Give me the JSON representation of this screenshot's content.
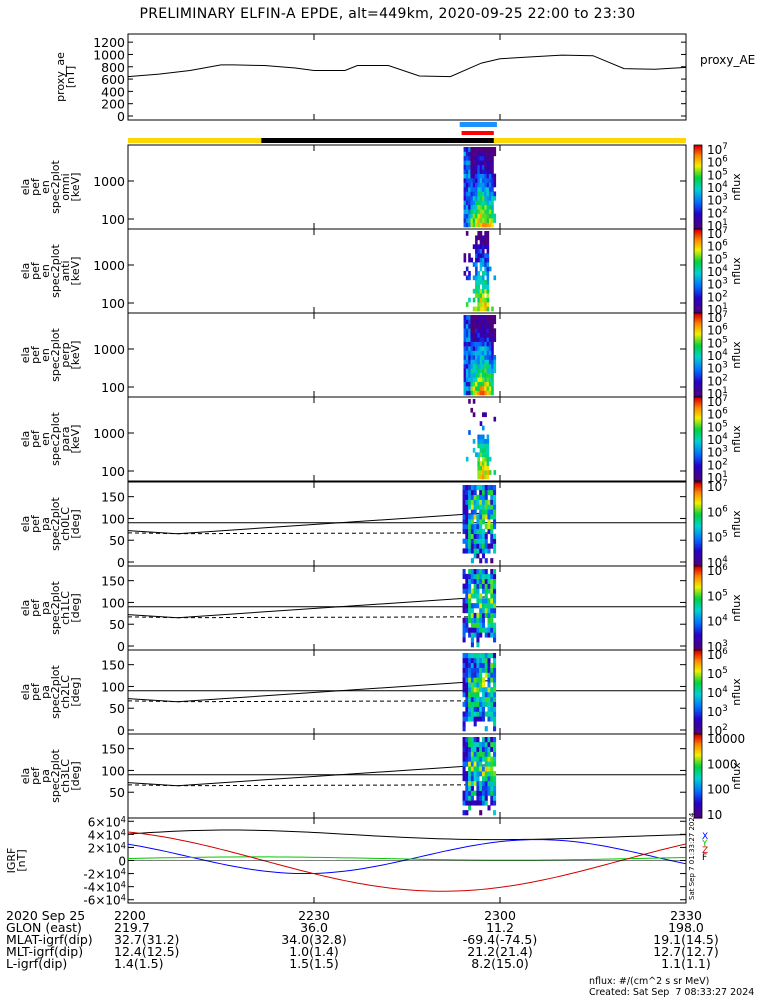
{
  "title": "PRELIMINARY ELFIN-A EPDE, alt=449km, 2020-09-25 22:00 to 23:30",
  "chart_data": {
    "type": "line",
    "x_range_minutes": [
      0,
      90
    ],
    "x_tick_minutes": [
      0,
      30,
      60,
      90
    ],
    "x_tick_labels": [
      "2200",
      "2230",
      "2300",
      "2330"
    ],
    "ae_panel": {
      "ylabel": [
        "proxy_ae",
        "[nT]"
      ],
      "legend": "proxy_AE",
      "ylim": [
        0,
        1300
      ],
      "yticks": [
        0,
        200,
        400,
        600,
        800,
        1000,
        1200
      ],
      "x": [
        0,
        5,
        10,
        15,
        17,
        22,
        27,
        30,
        35,
        37,
        42,
        47,
        52,
        57,
        60,
        65,
        70,
        75,
        80,
        85,
        90
      ],
      "values": [
        640,
        680,
        740,
        830,
        830,
        820,
        780,
        740,
        740,
        820,
        820,
        650,
        640,
        860,
        930,
        960,
        990,
        980,
        770,
        760,
        790
      ]
    },
    "bars": {
      "yellow_segments": [
        [
          0,
          21.5
        ],
        [
          59,
          90
        ]
      ],
      "black_segment": [
        21.5,
        59
      ],
      "blue_marker": [
        53.5,
        59.5
      ],
      "red_marker": [
        53.8,
        59.0
      ]
    },
    "spectro_panels": [
      {
        "id": "omni",
        "ylabel": [
          "ela",
          "pef",
          "en",
          "spec2plot",
          "omni",
          "[keV]"
        ],
        "yticks": [
          "100",
          "1000"
        ],
        "cb_top": "10^7",
        "cb_unit": "nflux",
        "cb_labels": [
          "10^1",
          "10^2",
          "10^3",
          "10^4",
          "10^5",
          "10^6",
          "10^7"
        ]
      },
      {
        "id": "anti",
        "ylabel": [
          "ela",
          "pef",
          "en",
          "spec2plot",
          "anti",
          "[keV]"
        ],
        "yticks": [
          "100",
          "1000"
        ],
        "cb_top": "10^7",
        "cb_unit": "nflux",
        "cb_labels": [
          "10^1",
          "10^2",
          "10^3",
          "10^4",
          "10^5",
          "10^6",
          "10^7"
        ]
      },
      {
        "id": "perp",
        "ylabel": [
          "ela",
          "pef",
          "en",
          "spec2plot",
          "perp",
          "[keV]"
        ],
        "yticks": [
          "100",
          "1000"
        ],
        "cb_top": "10^7",
        "cb_unit": "nflux",
        "cb_labels": [
          "10^1",
          "10^2",
          "10^3",
          "10^4",
          "10^5",
          "10^6",
          "10^7"
        ]
      },
      {
        "id": "para",
        "ylabel": [
          "ela",
          "pef",
          "en",
          "spec2plot",
          "para",
          "[keV]"
        ],
        "yticks": [
          "100",
          "1000"
        ],
        "cb_top": "10^7",
        "cb_unit": "nflux",
        "cb_labels": [
          "10^1",
          "10^2",
          "10^3",
          "10^4",
          "10^5",
          "10^6",
          "10^7"
        ]
      }
    ],
    "pa_panels": [
      {
        "id": "ch0LC",
        "ylabel": [
          "ela",
          "pef",
          "pa",
          "spec2plot",
          "ch0LC",
          "[deg]"
        ],
        "yticks": [
          "0",
          "50",
          "100",
          "150"
        ],
        "cb_unit": "nflux",
        "cb_labels": [
          "10^4",
          "10^5",
          "10^6",
          "10^7"
        ]
      },
      {
        "id": "ch1LC",
        "ylabel": [
          "ela",
          "pef",
          "pa",
          "spec2plot",
          "ch1LC",
          "[deg]"
        ],
        "yticks": [
          "0",
          "50",
          "100",
          "150"
        ],
        "cb_unit": "nflux",
        "cb_labels": [
          "10^3",
          "10^4",
          "10^5",
          "10^6"
        ]
      },
      {
        "id": "ch2LC",
        "ylabel": [
          "ela",
          "pef",
          "pa",
          "spec2plot",
          "ch2LC",
          "[deg]"
        ],
        "yticks": [
          "0",
          "50",
          "100",
          "150"
        ],
        "cb_unit": "nflux",
        "cb_labels": [
          "10^2",
          "10^3",
          "10^4",
          "10^5",
          "10^6"
        ]
      },
      {
        "id": "ch3LC",
        "ylabel": [
          "ela",
          "pef",
          "pa",
          "spec2plot",
          "ch3LC",
          "[deg]"
        ],
        "yticks": [
          "50",
          "100",
          "150"
        ],
        "cb_unit": "nflux",
        "cb_labels": [
          "10",
          "100",
          "1000",
          "10000"
        ]
      }
    ],
    "loss_cone_deg": {
      "x": [
        0,
        8,
        58
      ],
      "solid": [
        72,
        65,
        113
      ],
      "dashed": [
        67,
        65,
        67
      ]
    },
    "igrf_panel": {
      "ylabel": [
        "IGRF",
        "[nT]"
      ],
      "ylim": [
        -65000,
        65000
      ],
      "yticks": [
        "6x10^4",
        "4x10^4",
        "2x10^4",
        "0",
        "-2x10^4",
        "-4x10^4",
        "-6x10^4"
      ],
      "legend": [
        "X",
        "Y",
        "Z",
        "F"
      ],
      "stamp": "Sat Sep  7 01:33:27 2024"
    }
  },
  "bottom_table": {
    "header": {
      "label": "2020 Sep 25",
      "values": [
        "2200",
        "2230",
        "2300",
        "2330"
      ]
    },
    "rows": [
      {
        "label": "GLON (east)",
        "values": [
          "219.7",
          "36.0",
          "11.2",
          "198.0"
        ]
      },
      {
        "label": "MLAT-igrf(dip)",
        "values": [
          "32.7(31.2)",
          "34.0(32.8)",
          "-69.4(-74.5)",
          "19.1(14.5)"
        ]
      },
      {
        "label": "MLT-igrf(dip)",
        "values": [
          "12.4(12.5)",
          "1.0(1.4)",
          "21.2(21.4)",
          "12.7(12.7)"
        ]
      },
      {
        "label": "L-igrf(dip)",
        "values": [
          "1.4(1.5)",
          "1.5(1.5)",
          "8.2(15.0)",
          "1.1(1.1)"
        ]
      }
    ]
  },
  "footer": {
    "units": "nflux: #/(cm^2 s sr MeV)",
    "created": "Created: Sat Sep  7 08:33:27 2024"
  },
  "colors": {
    "x": "#0000ff",
    "y": "#00c800",
    "z": "#d00000",
    "f": "#000000",
    "yellow": "#ffd700",
    "blue_marker": "#1e90ff",
    "red_marker": "#ff0000"
  }
}
